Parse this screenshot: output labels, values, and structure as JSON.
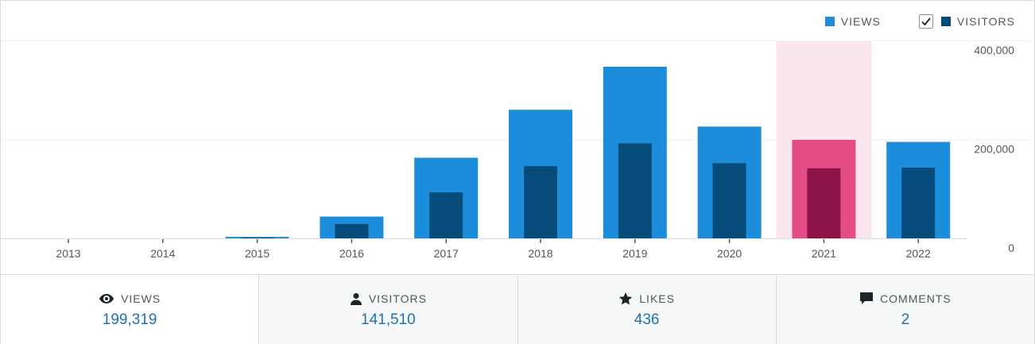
{
  "legend": {
    "views": "VIEWS",
    "visitors": "VISITORS",
    "visitors_checked": true
  },
  "colors": {
    "views": "#1b8ddb",
    "visitors": "#044b7a",
    "highlight_views": "#e34c84",
    "highlight_visitors": "#8d1448",
    "highlight_band": "#f9e6ef",
    "link": "#2271b1"
  },
  "chart_data": {
    "type": "bar",
    "categories": [
      "2013",
      "2014",
      "2015",
      "2016",
      "2017",
      "2018",
      "2019",
      "2020",
      "2021",
      "2022"
    ],
    "series": [
      {
        "name": "VIEWS",
        "values": [
          0,
          0,
          3000,
          44000,
          163000,
          260000,
          347000,
          226000,
          199319,
          195000
        ]
      },
      {
        "name": "VISITORS",
        "values": [
          0,
          0,
          1500,
          29000,
          93000,
          146000,
          192000,
          152000,
          141510,
          143000
        ]
      }
    ],
    "highlighted_category": "2021",
    "ylim": [
      0,
      400000
    ],
    "yticks": [
      0,
      200000,
      400000
    ],
    "ytick_labels": [
      "0",
      "200,000",
      "400,000"
    ],
    "y_axis_position": "right",
    "grid": true
  },
  "stats": [
    {
      "label": "VIEWS",
      "value": "199,319",
      "icon": "eye-icon",
      "active": true
    },
    {
      "label": "VISITORS",
      "value": "141,510",
      "icon": "person-icon",
      "active": false
    },
    {
      "label": "LIKES",
      "value": "436",
      "icon": "star-icon",
      "active": false
    },
    {
      "label": "COMMENTS",
      "value": "2",
      "icon": "comment-icon",
      "active": false
    }
  ]
}
